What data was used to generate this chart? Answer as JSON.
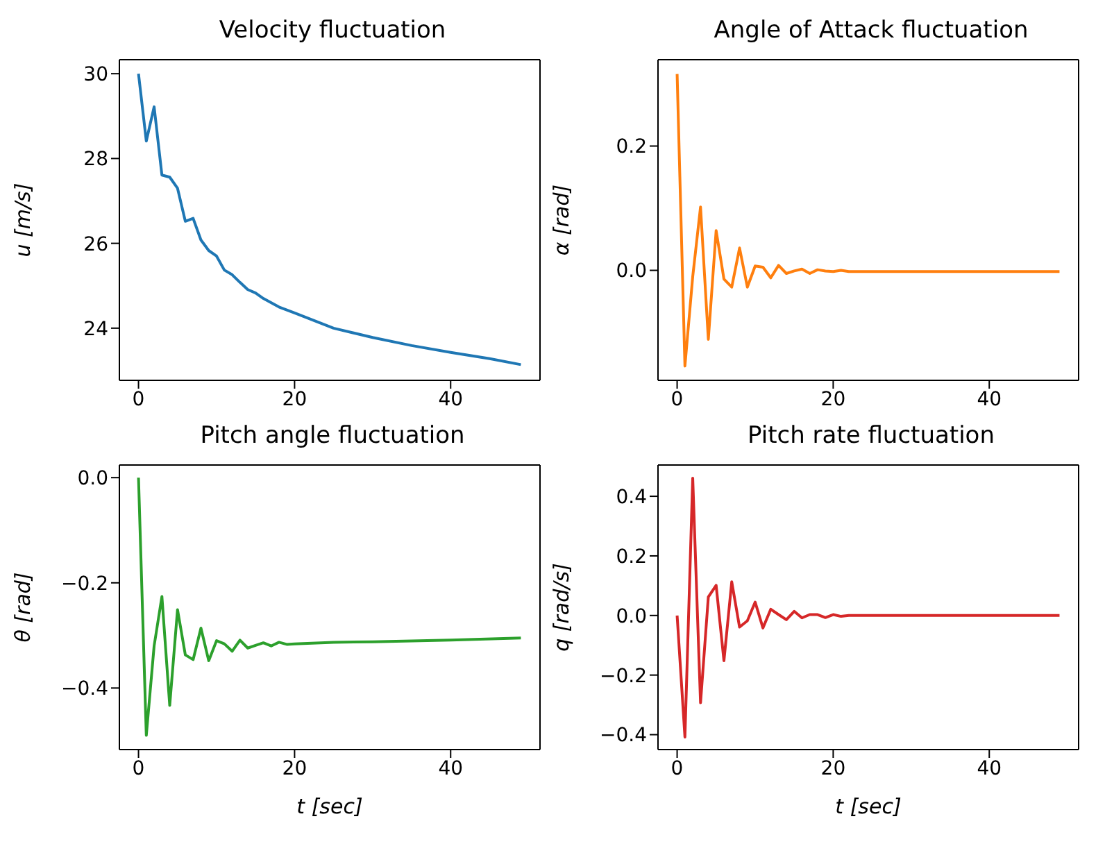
{
  "chart_data": [
    {
      "type": "line",
      "title": "Velocity fluctuation",
      "ylabel": "u [m/s]",
      "x": [
        0,
        1,
        2,
        3,
        4,
        5,
        6,
        7,
        8,
        9,
        10,
        11,
        12,
        13,
        14,
        15,
        16,
        18,
        20,
        25,
        30,
        35,
        40,
        45,
        49
      ],
      "xlim": [
        -2.45,
        51.45
      ],
      "xticks": [
        0,
        20,
        40
      ],
      "ylim": [
        22.77,
        30.33
      ],
      "yticks": [
        24,
        26,
        28,
        30
      ],
      "series": [
        {
          "color": "#1f77b4",
          "values": [
            30.0,
            28.41,
            29.22,
            27.61,
            27.56,
            27.3,
            26.52,
            26.59,
            26.08,
            25.83,
            25.7,
            25.37,
            25.26,
            25.08,
            24.91,
            24.83,
            24.7,
            24.5,
            24.36,
            24.0,
            23.78,
            23.59,
            23.43,
            23.28,
            23.14
          ]
        }
      ]
    },
    {
      "type": "line",
      "title": "Angle of Attack fluctuation",
      "ylabel": "α [rad]",
      "x": [
        0,
        1,
        2,
        3,
        4,
        5,
        6,
        7,
        8,
        9,
        10,
        11,
        12,
        13,
        14,
        15,
        16,
        17,
        18,
        19,
        20,
        21,
        22,
        30,
        40,
        49
      ],
      "xlim": [
        -2.45,
        51.45
      ],
      "xticks": [
        0,
        20,
        40
      ],
      "ylim": [
        -0.177,
        0.339
      ],
      "yticks": [
        {
          "value": 0,
          "label": "0.0"
        },
        {
          "value": 0.2,
          "label": "0.2"
        }
      ],
      "series": [
        {
          "color": "#ff7f0e",
          "values": [
            0.316,
            -0.154,
            -0.01,
            0.102,
            -0.111,
            0.064,
            -0.014,
            -0.027,
            0.036,
            -0.027,
            0.007,
            0.005,
            -0.012,
            0.008,
            -0.005,
            -0.001,
            0.002,
            -0.005,
            0.001,
            -0.001,
            -0.002,
            0,
            -0.002,
            -0.002,
            -0.002,
            -0.002
          ]
        }
      ]
    },
    {
      "type": "line",
      "title": "Pitch angle fluctuation",
      "xlabel": "t [sec]",
      "ylabel": "θ [rad]",
      "x": [
        0,
        1,
        2,
        3,
        4,
        5,
        6,
        7,
        8,
        9,
        10,
        11,
        12,
        13,
        14,
        15,
        16,
        17,
        18,
        19,
        20,
        25,
        30,
        40,
        49
      ],
      "xlim": [
        -2.45,
        51.45
      ],
      "xticks": [
        0,
        20,
        40
      ],
      "ylim": [
        -0.517,
        0.024
      ],
      "yticks": [
        {
          "value": -0.4,
          "label": "−0.4"
        },
        {
          "value": -0.2,
          "label": "−0.2"
        },
        {
          "value": 0,
          "label": "0.0"
        }
      ],
      "series": [
        {
          "color": "#2ca02c",
          "values": [
            0,
            -0.49,
            -0.32,
            -0.226,
            -0.433,
            -0.251,
            -0.337,
            -0.346,
            -0.286,
            -0.348,
            -0.31,
            -0.316,
            -0.33,
            -0.309,
            -0.324,
            -0.319,
            -0.314,
            -0.32,
            -0.313,
            -0.317,
            -0.316,
            -0.313,
            -0.312,
            -0.309,
            -0.305
          ]
        }
      ]
    },
    {
      "type": "line",
      "title": "Pitch rate fluctuation",
      "xlabel": "t [sec]",
      "ylabel": "q [rad/s]",
      "x": [
        0,
        1,
        2,
        3,
        4,
        5,
        6,
        7,
        8,
        9,
        10,
        11,
        12,
        13,
        14,
        15,
        16,
        17,
        18,
        19,
        20,
        21,
        22,
        30,
        40,
        49
      ],
      "xlim": [
        -2.45,
        51.45
      ],
      "xticks": [
        0,
        20,
        40
      ],
      "ylim": [
        -0.45,
        0.505
      ],
      "yticks": [
        {
          "value": -0.4,
          "label": "−0.4"
        },
        {
          "value": -0.2,
          "label": "−0.2"
        },
        {
          "value": 0,
          "label": "0.0"
        },
        {
          "value": 0.2,
          "label": "0.2"
        },
        {
          "value": 0.4,
          "label": "0.4"
        }
      ],
      "series": [
        {
          "color": "#d62728",
          "values": [
            0,
            -0.408,
            0.461,
            -0.293,
            0.062,
            0.101,
            -0.152,
            0.113,
            -0.039,
            -0.018,
            0.045,
            -0.042,
            0.021,
            0.003,
            -0.014,
            0.014,
            -0.008,
            0.003,
            0.003,
            -0.007,
            0.003,
            -0.003,
            0,
            0,
            0,
            0
          ]
        }
      ]
    }
  ]
}
